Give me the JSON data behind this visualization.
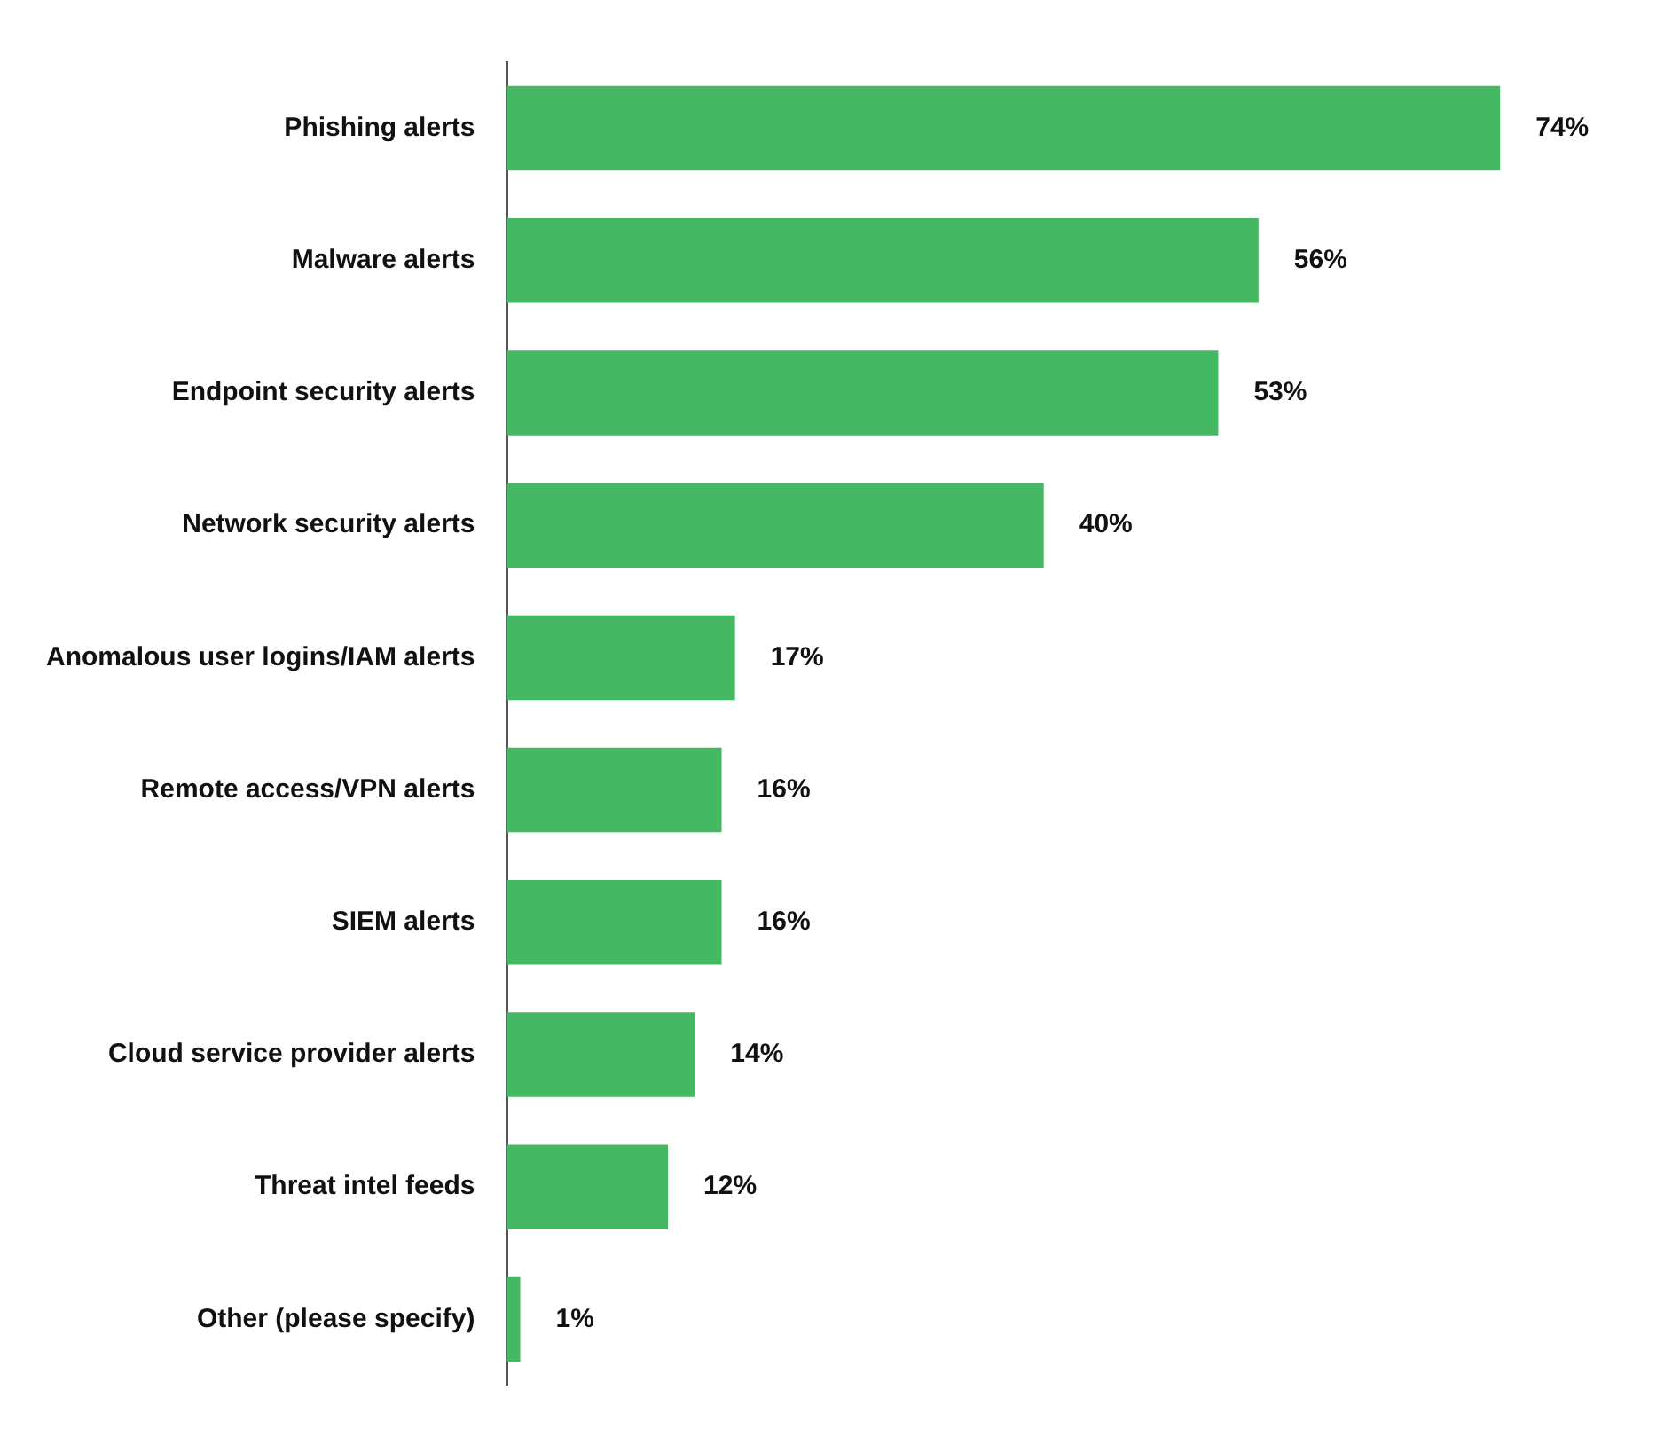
{
  "chart_data": {
    "type": "bar",
    "orientation": "horizontal",
    "categories": [
      "Phishing alerts",
      "Malware alerts",
      "Endpoint security alerts",
      "Network security alerts",
      "Anomalous user logins/IAM alerts",
      "Remote access/VPN alerts",
      "SIEM alerts",
      "Cloud service provider alerts",
      "Threat intel feeds",
      "Other (please specify)"
    ],
    "values": [
      74,
      56,
      53,
      40,
      17,
      16,
      16,
      14,
      12,
      1
    ],
    "value_labels": [
      "74%",
      "56%",
      "53%",
      "40%",
      "17%",
      "16%",
      "16%",
      "14%",
      "12%",
      "1%"
    ],
    "color": "#45b864"
  }
}
